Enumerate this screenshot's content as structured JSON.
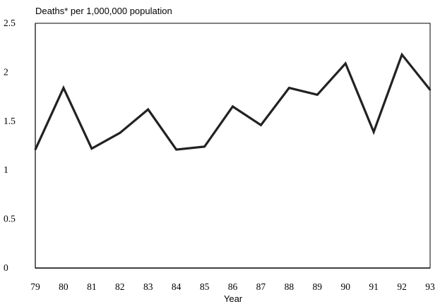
{
  "chart_data": {
    "type": "line",
    "title": "",
    "ylabel": "Deaths* per 1,000,000 population",
    "xlabel": "Year",
    "x": [
      "79",
      "80",
      "81",
      "82",
      "83",
      "84",
      "85",
      "86",
      "87",
      "88",
      "89",
      "90",
      "91",
      "92",
      "93"
    ],
    "values": [
      1.21,
      1.84,
      1.22,
      1.38,
      1.62,
      1.21,
      1.24,
      1.65,
      1.46,
      1.84,
      1.77,
      2.09,
      1.39,
      2.18,
      1.82
    ],
    "yticks": [
      "0",
      "0.5",
      "1",
      "1.5",
      "2",
      "2.5"
    ],
    "ylim": [
      0,
      2.5
    ],
    "grid": false,
    "line_color": "#222222"
  }
}
